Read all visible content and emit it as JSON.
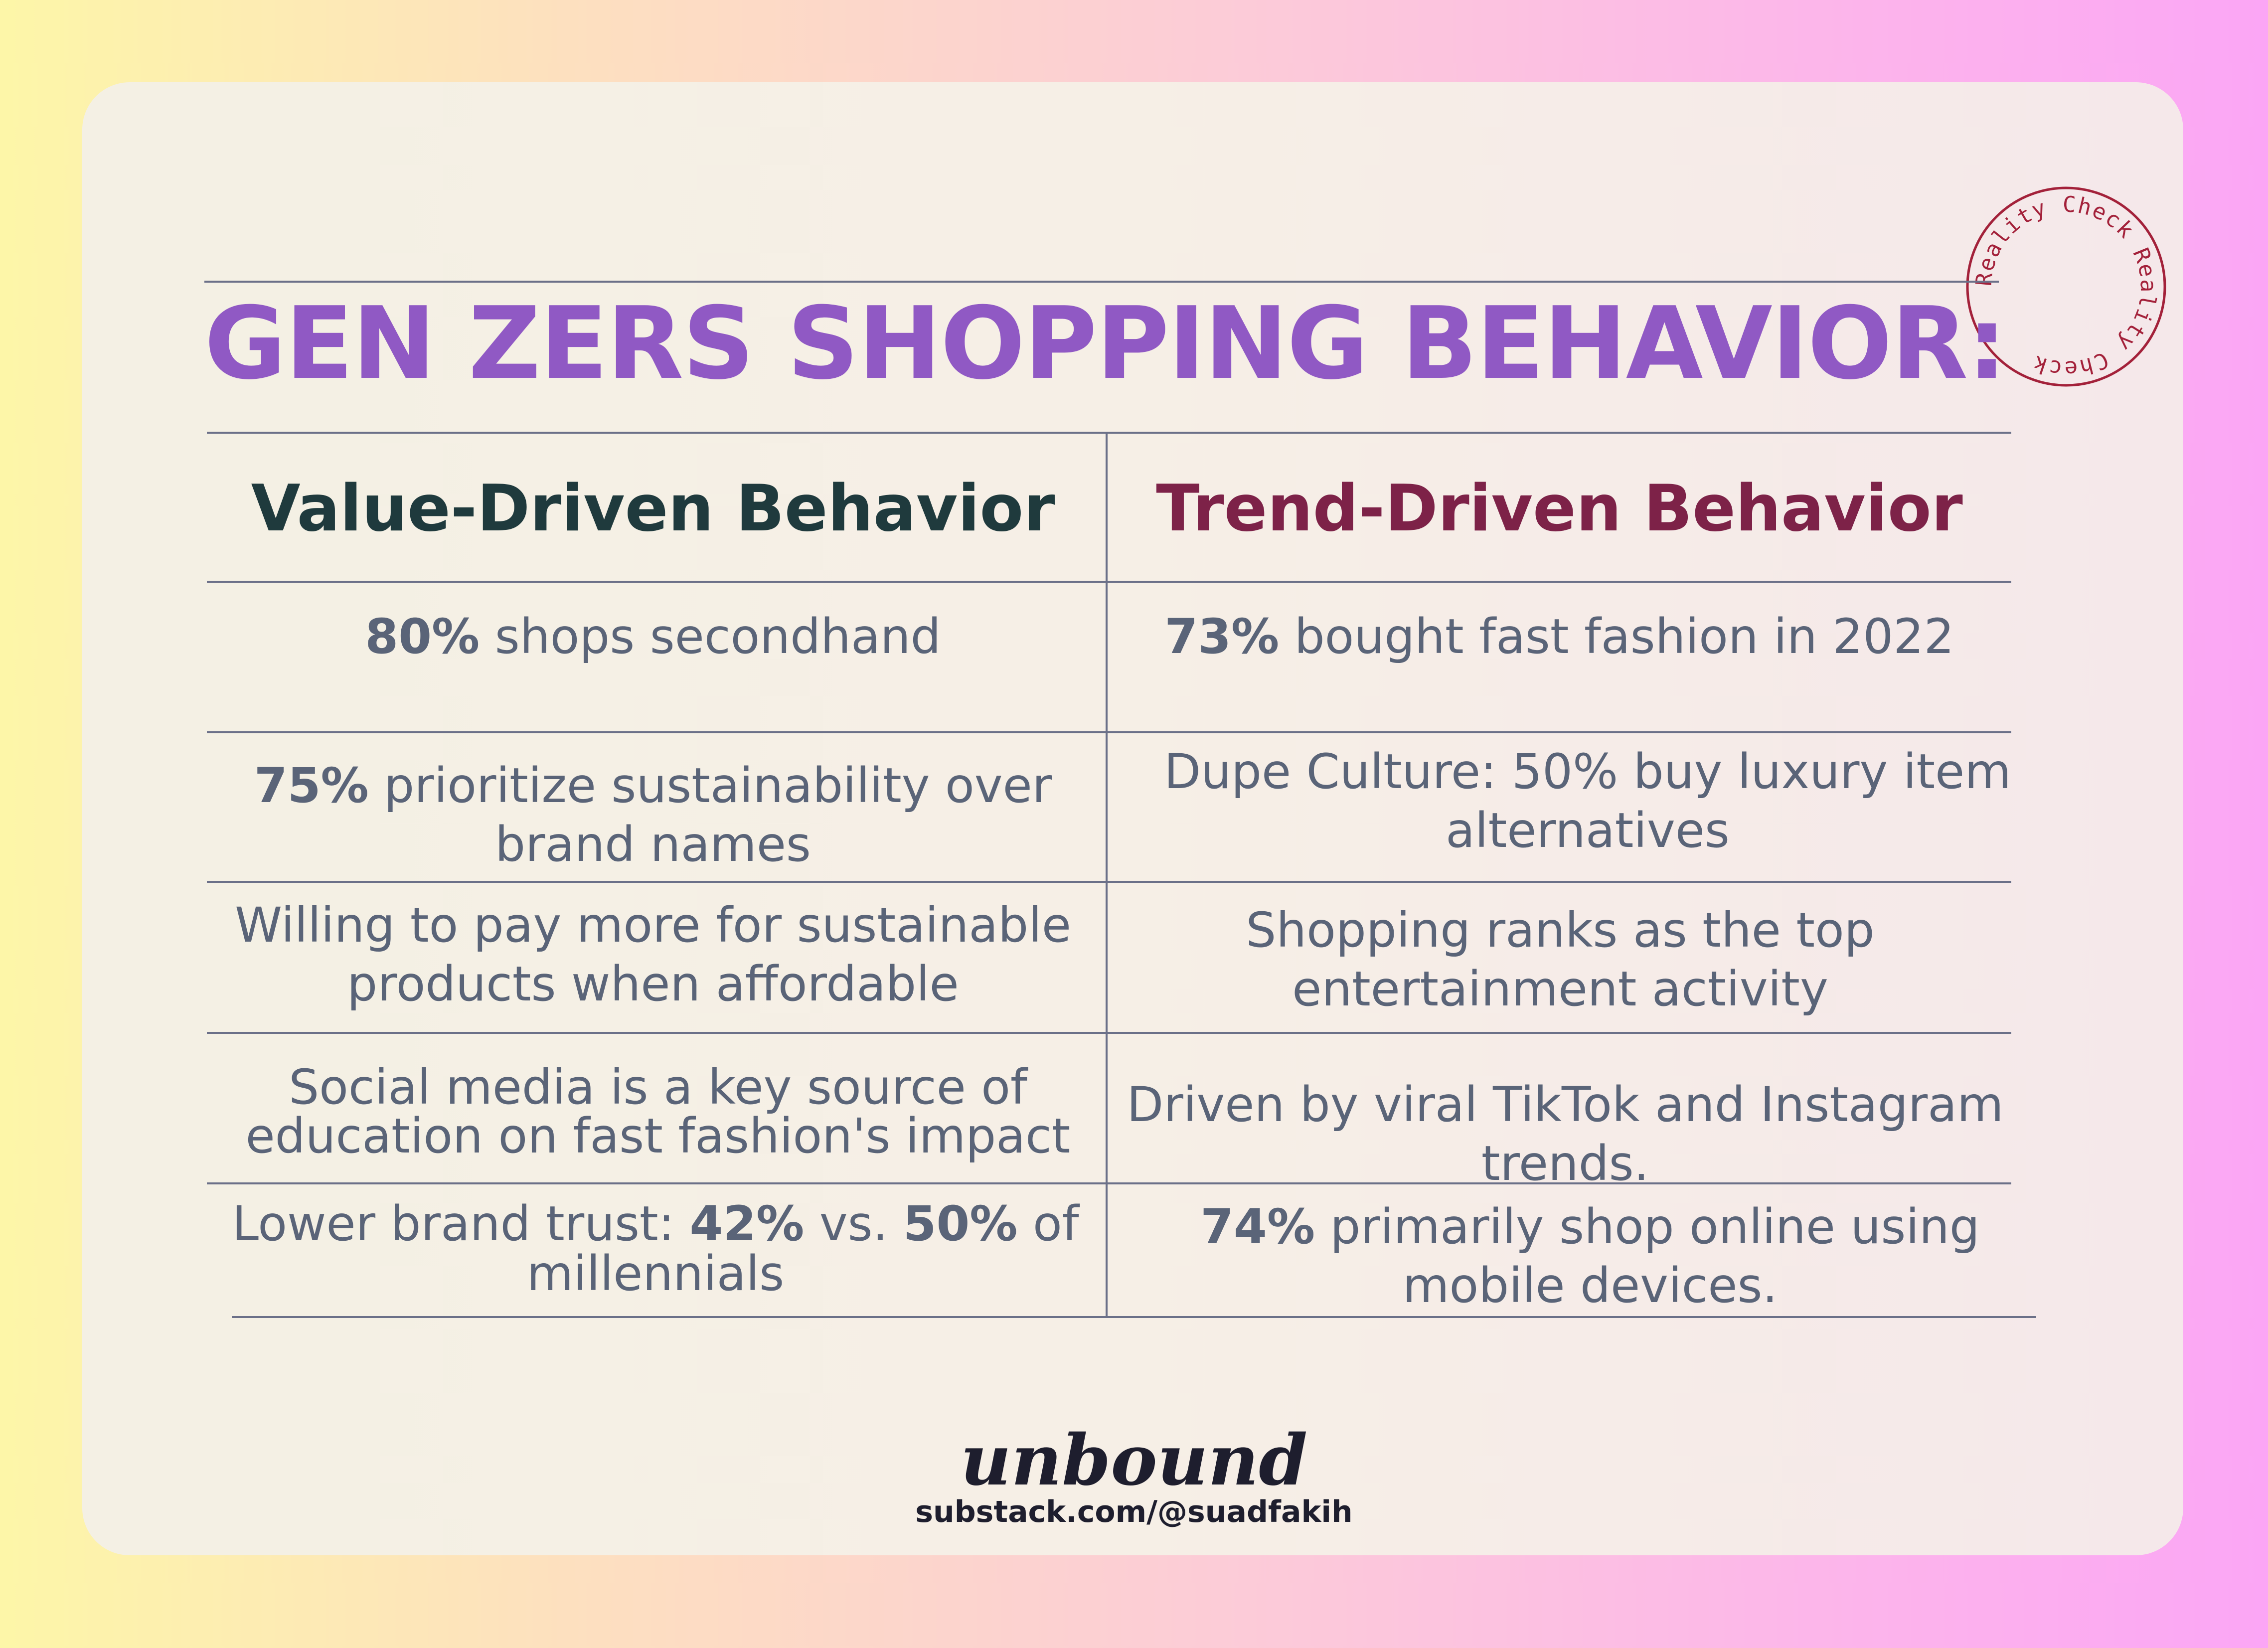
{
  "title": "GEN ZERS SHOPPING BEHAVIOR:",
  "stamp_text": "Reality Check Reality Check",
  "columns": {
    "left": "Value-Driven Behavior",
    "right": "Trend-Driven Behavior"
  },
  "rows": [
    {
      "left": {
        "bold": "80%",
        "text": " shops secondhand"
      },
      "right": {
        "bold": "73%",
        "text": " bought fast fashion in 2022"
      }
    },
    {
      "left": {
        "bold": "75%",
        "text": " prioritize sustainability over brand names"
      },
      "right": {
        "bold": "",
        "text": "Dupe Culture: 50% buy luxury item alternatives"
      }
    },
    {
      "left": {
        "bold": "",
        "text": "Willing to pay more for sustainable products when affordable"
      },
      "right": {
        "bold": "",
        "text": "Shopping ranks as the top entertainment activity"
      }
    },
    {
      "left": {
        "bold": "",
        "text": "Social media is a key source of education on fast fashion's impact"
      },
      "right": {
        "bold": "",
        "text": "Driven by viral TikTok and Instagram trends."
      }
    },
    {
      "left": {
        "prefix": "Lower brand trust: ",
        "bold1": "42%",
        "mid": " vs. ",
        "bold2": "50%",
        "suffix": " of millennials"
      },
      "right": {
        "bold": "74%",
        "text": " primarily shop online using mobile devices."
      }
    }
  ],
  "footer": {
    "brand": "unbound",
    "url": "substack.com/@suadfakih"
  },
  "colors": {
    "title": "#9059c4",
    "value_header": "#1f3a3d",
    "trend_header": "#7d2248",
    "body_text": "#5a6478",
    "stamp": "#a3213a"
  }
}
